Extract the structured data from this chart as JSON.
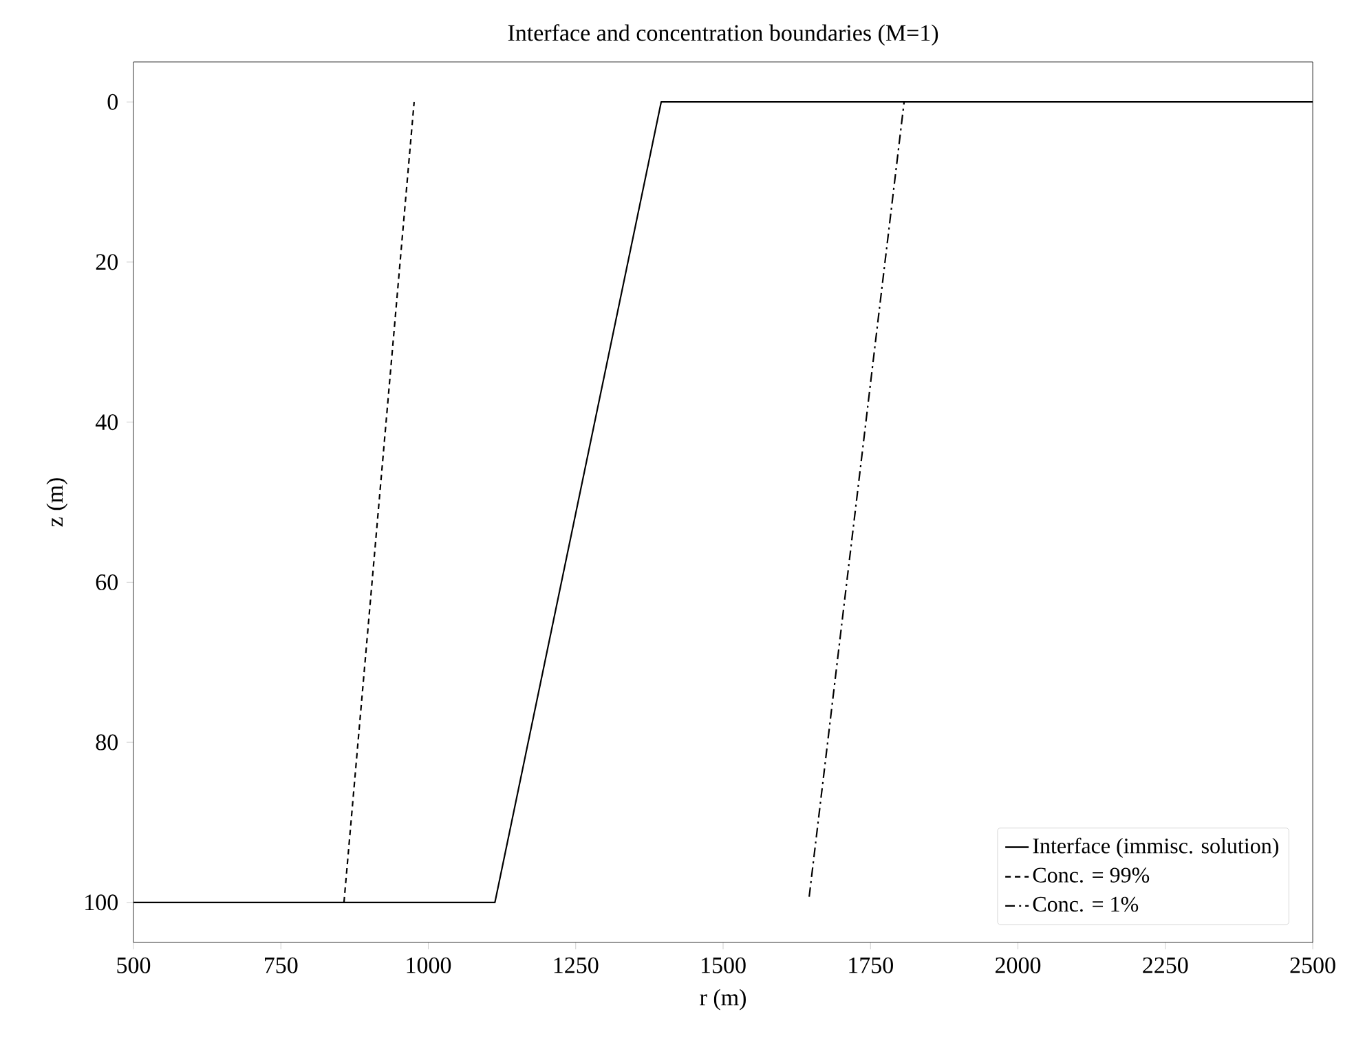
{
  "chart_data": {
    "type": "line",
    "title": "Interface and concentration boundaries (M=1)",
    "xlabel": "r (m)",
    "ylabel": "z (m)",
    "xlim": [
      500,
      2500
    ],
    "ylim": [
      105,
      -5
    ],
    "xticks": [
      500,
      750,
      1000,
      1250,
      1500,
      1750,
      2000,
      2250,
      2500
    ],
    "yticks": [
      0,
      20,
      40,
      60,
      80,
      100
    ],
    "grid": false,
    "legend": "bottom right",
    "marker": "none",
    "series": [
      {
        "name": "Interface (immisc. solution)",
        "color": "#000000",
        "line_style": "solid",
        "x": [
          500,
          1113,
          1395,
          2500
        ],
        "values": [
          100,
          100,
          0,
          0
        ]
      },
      {
        "name": "Conc. = 99%",
        "color": "#000000",
        "line_style": "dashed",
        "x": [
          857,
          976
        ],
        "values": [
          100,
          0
        ]
      },
      {
        "name": "Conc. = 1%",
        "color": "#000000",
        "line_style": "dashdot",
        "x": [
          1646,
          1807
        ],
        "values": [
          99.3,
          0
        ]
      }
    ]
  }
}
